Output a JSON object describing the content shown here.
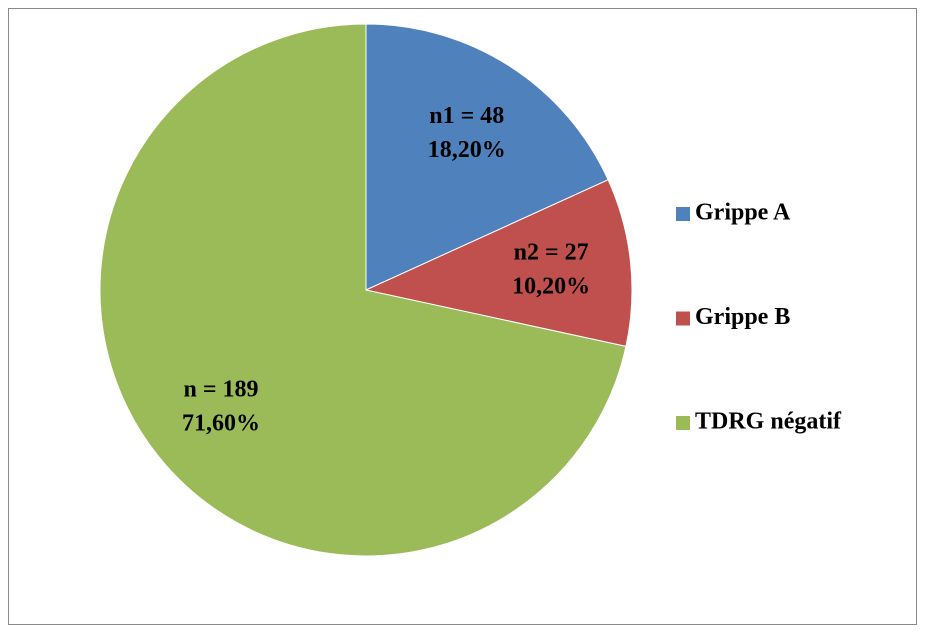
{
  "chart_data": {
    "type": "pie",
    "categories": [
      "Grippe A",
      "Grippe B",
      "TDRG négatif"
    ],
    "values": [
      18.2,
      10.2,
      71.6
    ],
    "value_labels": [
      "18,20%",
      "10,20%",
      "71,60%"
    ],
    "count_labels": [
      "n1 = 48",
      "n2 = 27",
      "n = 189"
    ],
    "colors": [
      "#4f81bd",
      "#c0504d",
      "#9bbb59"
    ],
    "legend": "right"
  }
}
